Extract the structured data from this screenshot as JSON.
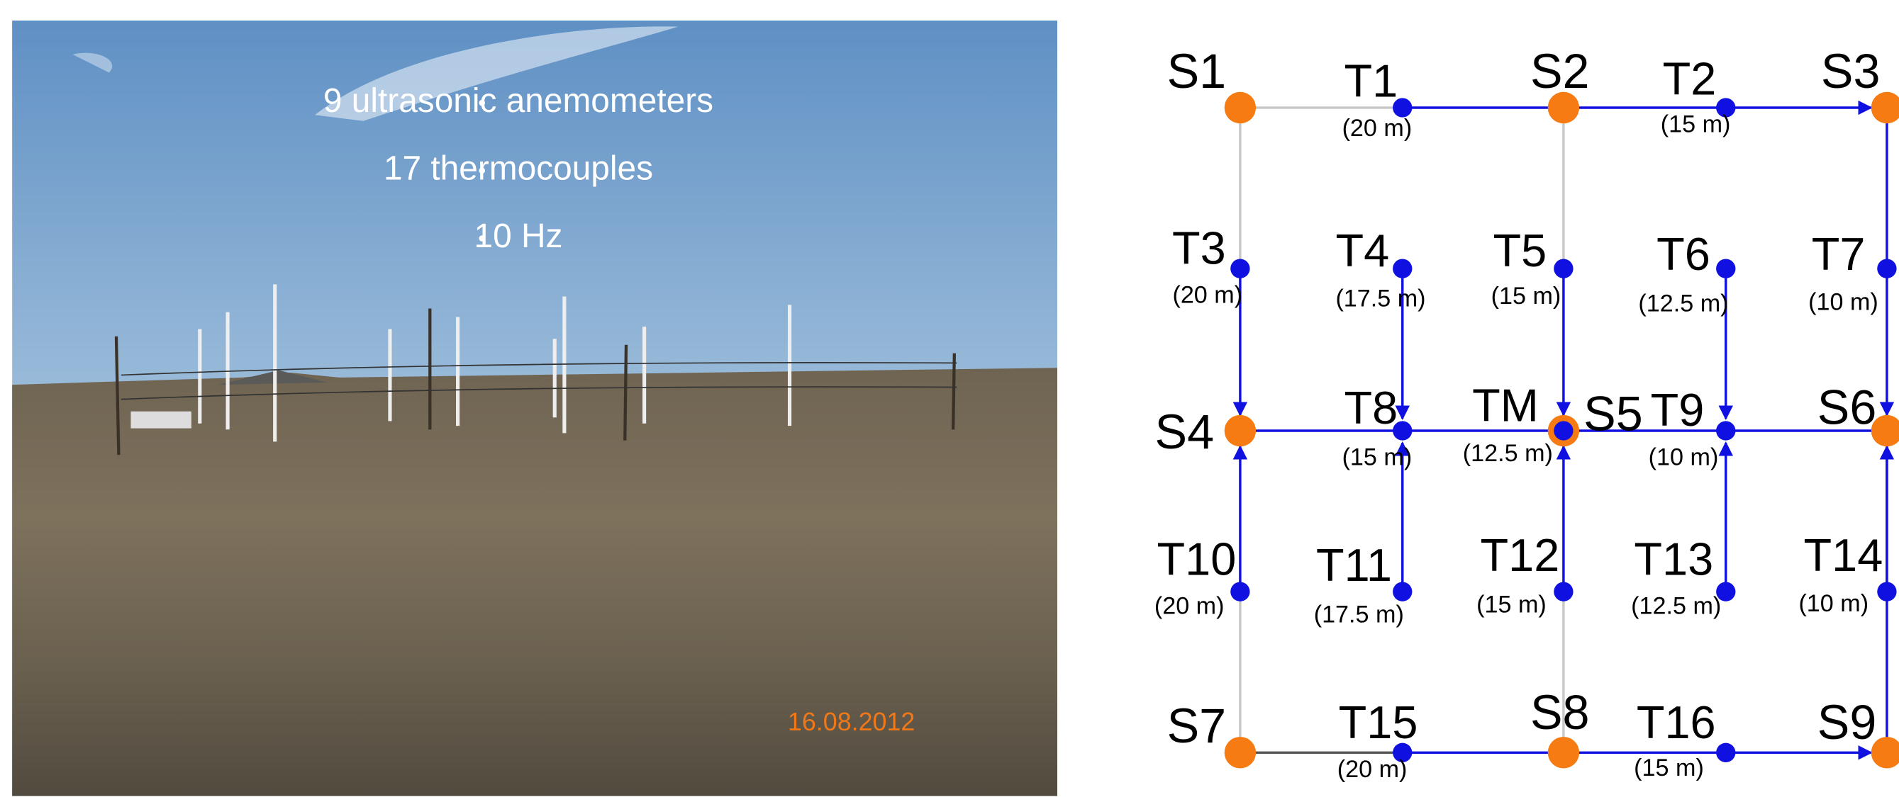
{
  "photo": {
    "bullets": [
      "9 ultrasonic anemometers",
      "17 thermocouples",
      "10 Hz"
    ],
    "date": "16.08.2012"
  },
  "nodes": [
    {
      "label": "S1"
    },
    {
      "label": "S2"
    },
    {
      "label": "S3"
    },
    {
      "label": "S4"
    },
    {
      "label": "S5"
    },
    {
      "label": "S6"
    },
    {
      "label": "S7"
    },
    {
      "label": "S8"
    },
    {
      "label": "S9"
    },
    {
      "label": "T1",
      "height": "(20 m)"
    },
    {
      "label": "T2",
      "height": "(15 m)"
    },
    {
      "label": "T3",
      "height": "(20 m)"
    },
    {
      "label": "T4",
      "height": "(17.5 m)"
    },
    {
      "label": "T5",
      "height": "(15 m)"
    },
    {
      "label": "T6",
      "height": "(12.5 m)"
    },
    {
      "label": "T7",
      "height": "(10 m)"
    },
    {
      "label": "T8",
      "height": "(15 m)"
    },
    {
      "label": "TM",
      "height": "(12.5 m)"
    },
    {
      "label": "T9",
      "height": "(10 m)"
    },
    {
      "label": "T10",
      "height": "(20 m)"
    },
    {
      "label": "T11",
      "height": "(17.5 m)"
    },
    {
      "label": "T12",
      "height": "(15 m)"
    },
    {
      "label": "T13",
      "height": "(12.5 m)"
    },
    {
      "label": "T14",
      "height": "(10 m)"
    },
    {
      "label": "T15",
      "height": "(20 m)"
    },
    {
      "label": "T16",
      "height": "(15 m)"
    }
  ]
}
